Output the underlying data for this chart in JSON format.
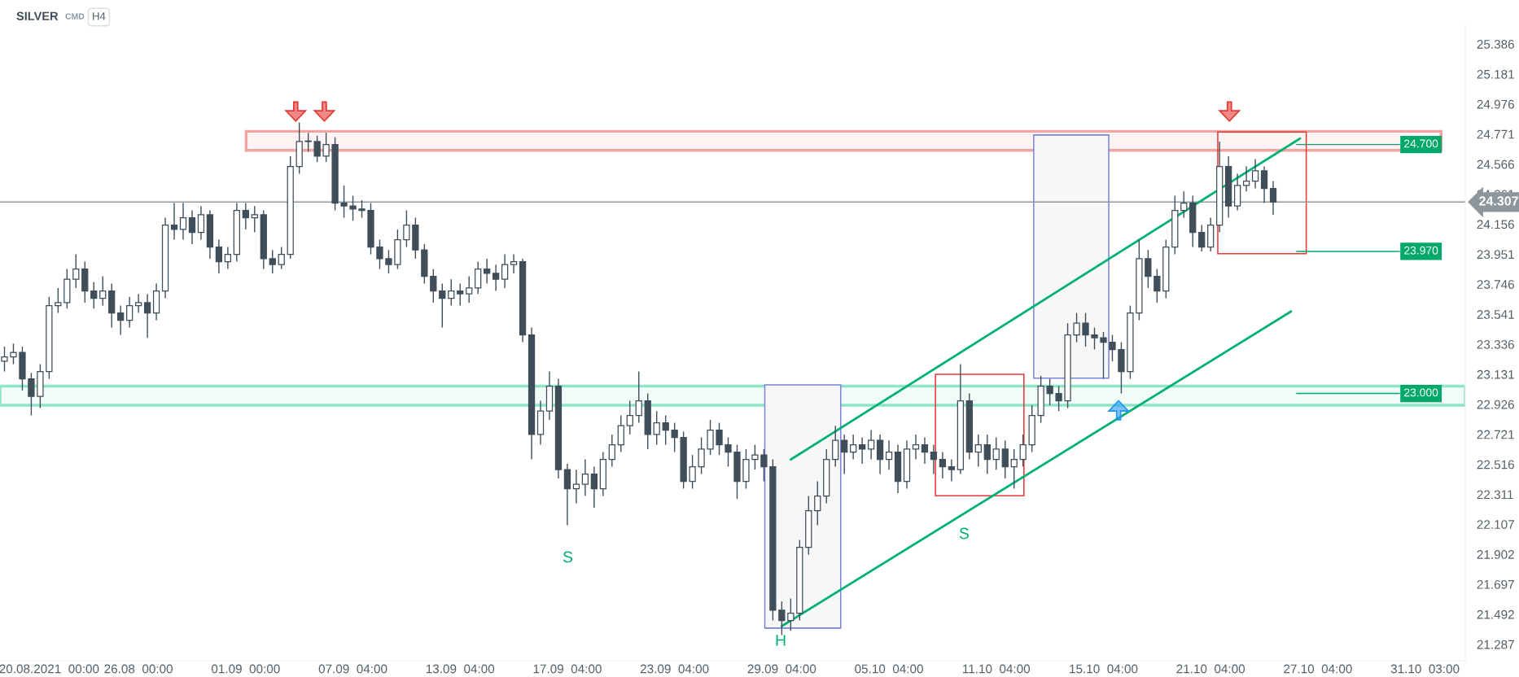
{
  "chart_data": {
    "type": "candlestick",
    "title": "SILVER",
    "subtitle": "CMD",
    "annotations": [
      "H4",
      "S",
      "H",
      "S"
    ],
    "categories": [
      null,
      null,
      null,
      null,
      null,
      "20.08.2021  00:00",
      null,
      null,
      null,
      null,
      null,
      null,
      null,
      null,
      null,
      "26.08  00:00",
      null,
      null,
      null,
      null,
      null,
      null,
      null,
      null,
      null,
      null,
      null,
      "01.09  00:00",
      null,
      null,
      null,
      null,
      null,
      null,
      null,
      null,
      null,
      null,
      null,
      "07.09  04:00",
      null,
      null,
      null,
      null,
      null,
      null,
      null,
      null,
      null,
      null,
      null,
      "13.09  04:00",
      null,
      null,
      null,
      null,
      null,
      null,
      null,
      null,
      null,
      null,
      null,
      "17.09  04:00",
      null,
      null,
      null,
      null,
      null,
      null,
      null,
      null,
      null,
      null,
      null,
      "23.09  04:00",
      null,
      null,
      null,
      null,
      null,
      null,
      null,
      null,
      null,
      null,
      null,
      "29.09  04:00",
      null,
      null,
      null,
      null,
      null,
      null,
      null,
      null,
      null,
      null,
      null,
      "05.10  04:00",
      null,
      null,
      null,
      null,
      null,
      null,
      null,
      null,
      null,
      null,
      null,
      "11.10  04:00",
      null,
      null,
      null,
      null,
      null,
      null,
      null,
      null,
      null,
      null,
      null,
      "15.10  04:00",
      null,
      null,
      null,
      null,
      null,
      null,
      null,
      null,
      null,
      null,
      null,
      "21.10  04:00",
      null,
      null,
      null,
      null,
      null,
      null,
      null,
      null,
      null,
      null,
      null,
      "27.10  04:00",
      null,
      null,
      null,
      null,
      null,
      null,
      null,
      null,
      null,
      null,
      null,
      "31.10  03:00",
      null,
      null,
      null,
      null
    ],
    "ohlc": [
      [
        23.22,
        23.32,
        23.15,
        23.25
      ],
      [
        23.25,
        23.34,
        23.2,
        23.28
      ],
      [
        23.28,
        23.32,
        23.02,
        23.1
      ],
      [
        23.1,
        23.14,
        22.85,
        22.98
      ],
      [
        22.98,
        23.2,
        22.9,
        23.15
      ],
      [
        23.15,
        23.66,
        23.1,
        23.6
      ],
      [
        23.6,
        23.72,
        23.55,
        23.62
      ],
      [
        23.62,
        23.85,
        23.58,
        23.78
      ],
      [
        23.78,
        23.95,
        23.72,
        23.85
      ],
      [
        23.85,
        23.9,
        23.62,
        23.7
      ],
      [
        23.7,
        23.76,
        23.58,
        23.65
      ],
      [
        23.65,
        23.8,
        23.6,
        23.7
      ],
      [
        23.7,
        23.75,
        23.45,
        23.55
      ],
      [
        23.55,
        23.6,
        23.4,
        23.5
      ],
      [
        23.5,
        23.66,
        23.45,
        23.6
      ],
      [
        23.6,
        23.68,
        23.55,
        23.62
      ],
      [
        23.62,
        23.68,
        23.38,
        23.55
      ],
      [
        23.55,
        23.75,
        23.5,
        23.7
      ],
      [
        23.7,
        24.2,
        23.65,
        24.15
      ],
      [
        24.15,
        24.3,
        24.05,
        24.12
      ],
      [
        24.12,
        24.3,
        24.05,
        24.2
      ],
      [
        24.2,
        24.25,
        24.02,
        24.1
      ],
      [
        24.1,
        24.28,
        24.05,
        24.22
      ],
      [
        24.22,
        24.25,
        23.92,
        24.0
      ],
      [
        24.0,
        24.05,
        23.82,
        23.9
      ],
      [
        23.9,
        24.0,
        23.85,
        23.95
      ],
      [
        23.95,
        24.3,
        23.9,
        24.25
      ],
      [
        24.25,
        24.3,
        24.12,
        24.2
      ],
      [
        24.2,
        24.28,
        24.1,
        24.22
      ],
      [
        24.22,
        24.25,
        23.85,
        23.92
      ],
      [
        23.92,
        23.98,
        23.82,
        23.88
      ],
      [
        23.88,
        24.0,
        23.85,
        23.95
      ],
      [
        23.95,
        24.62,
        23.92,
        24.55
      ],
      [
        24.55,
        24.85,
        24.5,
        24.72
      ],
      [
        24.72,
        24.78,
        24.65,
        24.72
      ],
      [
        24.72,
        24.76,
        24.58,
        24.62
      ],
      [
        24.62,
        24.78,
        24.58,
        24.7
      ],
      [
        24.7,
        24.75,
        24.25,
        24.3
      ],
      [
        24.3,
        24.42,
        24.2,
        24.28
      ],
      [
        24.28,
        24.35,
        24.18,
        24.26
      ],
      [
        24.26,
        24.32,
        24.2,
        24.25
      ],
      [
        24.25,
        24.3,
        23.95,
        24.0
      ],
      [
        24.0,
        24.05,
        23.85,
        23.92
      ],
      [
        23.92,
        23.98,
        23.82,
        23.88
      ],
      [
        23.88,
        24.12,
        23.85,
        24.05
      ],
      [
        24.05,
        24.25,
        24.0,
        24.15
      ],
      [
        24.15,
        24.2,
        23.92,
        23.98
      ],
      [
        23.98,
        24.02,
        23.75,
        23.8
      ],
      [
        23.8,
        23.85,
        23.62,
        23.7
      ],
      [
        23.7,
        23.75,
        23.45,
        23.65
      ],
      [
        23.65,
        23.78,
        23.6,
        23.7
      ],
      [
        23.7,
        23.75,
        23.6,
        23.68
      ],
      [
        23.68,
        23.8,
        23.62,
        23.72
      ],
      [
        23.72,
        23.9,
        23.68,
        23.85
      ],
      [
        23.85,
        23.92,
        23.75,
        23.82
      ],
      [
        23.82,
        23.88,
        23.7,
        23.78
      ],
      [
        23.78,
        23.95,
        23.72,
        23.88
      ],
      [
        23.88,
        23.95,
        23.82,
        23.9
      ],
      [
        23.9,
        23.92,
        23.35,
        23.4
      ],
      [
        23.4,
        23.45,
        22.55,
        22.72
      ],
      [
        22.72,
        22.95,
        22.65,
        22.88
      ],
      [
        22.88,
        23.15,
        22.82,
        23.05
      ],
      [
        23.05,
        23.1,
        22.42,
        22.48
      ],
      [
        22.48,
        22.52,
        22.1,
        22.35
      ],
      [
        22.35,
        22.48,
        22.25,
        22.38
      ],
      [
        22.38,
        22.55,
        22.3,
        22.45
      ],
      [
        22.45,
        22.5,
        22.22,
        22.35
      ],
      [
        22.35,
        22.6,
        22.3,
        22.55
      ],
      [
        22.55,
        22.72,
        22.5,
        22.65
      ],
      [
        22.65,
        22.85,
        22.6,
        22.78
      ],
      [
        22.78,
        22.95,
        22.72,
        22.85
      ],
      [
        22.85,
        23.15,
        22.8,
        22.95
      ],
      [
        22.95,
        23.0,
        22.62,
        22.72
      ],
      [
        22.72,
        22.88,
        22.65,
        22.8
      ],
      [
        22.8,
        22.85,
        22.65,
        22.75
      ],
      [
        22.75,
        22.8,
        22.6,
        22.7
      ],
      [
        22.7,
        22.74,
        22.35,
        22.4
      ],
      [
        22.4,
        22.58,
        22.35,
        22.5
      ],
      [
        22.5,
        22.7,
        22.45,
        22.62
      ],
      [
        22.62,
        22.82,
        22.58,
        22.75
      ],
      [
        22.75,
        22.8,
        22.58,
        22.65
      ],
      [
        22.65,
        22.7,
        22.5,
        22.6
      ],
      [
        22.6,
        22.65,
        22.28,
        22.4
      ],
      [
        22.4,
        22.62,
        22.35,
        22.55
      ],
      [
        22.55,
        22.65,
        22.48,
        22.58
      ],
      [
        22.58,
        22.62,
        22.4,
        22.5
      ],
      [
        22.5,
        22.55,
        21.45,
        21.52
      ],
      [
        21.52,
        21.58,
        21.35,
        21.45
      ],
      [
        21.45,
        21.6,
        21.38,
        21.5
      ],
      [
        21.5,
        22.0,
        21.45,
        21.95
      ],
      [
        21.95,
        22.3,
        21.9,
        22.2
      ],
      [
        22.2,
        22.4,
        22.1,
        22.3
      ],
      [
        22.3,
        22.62,
        22.25,
        22.55
      ],
      [
        22.55,
        22.78,
        22.5,
        22.68
      ],
      [
        22.68,
        22.72,
        22.45,
        22.6
      ],
      [
        22.6,
        22.72,
        22.55,
        22.65
      ],
      [
        22.65,
        22.7,
        22.52,
        22.62
      ],
      [
        22.62,
        22.75,
        22.55,
        22.68
      ],
      [
        22.68,
        22.72,
        22.45,
        22.55
      ],
      [
        22.55,
        22.68,
        22.48,
        22.6
      ],
      [
        22.6,
        22.65,
        22.32,
        22.4
      ],
      [
        22.4,
        22.68,
        22.35,
        22.62
      ],
      [
        22.62,
        22.72,
        22.55,
        22.65
      ],
      [
        22.65,
        22.7,
        22.52,
        22.6
      ],
      [
        22.6,
        22.65,
        22.45,
        22.55
      ],
      [
        22.55,
        22.6,
        22.42,
        22.5
      ],
      [
        22.5,
        22.55,
        22.4,
        22.48
      ],
      [
        22.48,
        23.2,
        22.45,
        22.95
      ],
      [
        22.95,
        23.0,
        22.55,
        22.6
      ],
      [
        22.6,
        22.72,
        22.5,
        22.65
      ],
      [
        22.65,
        22.72,
        22.45,
        22.55
      ],
      [
        22.55,
        22.7,
        22.48,
        22.62
      ],
      [
        22.62,
        22.68,
        22.42,
        22.5
      ],
      [
        22.5,
        22.62,
        22.35,
        22.55
      ],
      [
        22.55,
        22.72,
        22.5,
        22.65
      ],
      [
        22.65,
        22.92,
        22.6,
        22.85
      ],
      [
        22.85,
        23.12,
        22.8,
        23.05
      ],
      [
        23.05,
        23.1,
        22.92,
        23.0
      ],
      [
        23.0,
        23.05,
        22.88,
        22.95
      ],
      [
        22.95,
        23.48,
        22.9,
        23.4
      ],
      [
        23.4,
        23.55,
        23.35,
        23.48
      ],
      [
        23.48,
        23.55,
        23.32,
        23.4
      ],
      [
        23.4,
        23.45,
        23.3,
        23.38
      ],
      [
        23.38,
        23.42,
        23.1,
        23.35
      ],
      [
        23.35,
        23.4,
        23.22,
        23.3
      ],
      [
        23.3,
        23.35,
        23.0,
        23.15
      ],
      [
        23.15,
        23.6,
        23.1,
        23.55
      ],
      [
        23.55,
        24.05,
        23.5,
        23.92
      ],
      [
        23.92,
        23.98,
        23.72,
        23.8
      ],
      [
        23.8,
        23.85,
        23.62,
        23.7
      ],
      [
        23.7,
        24.05,
        23.65,
        24.0
      ],
      [
        24.0,
        24.35,
        23.95,
        24.25
      ],
      [
        24.25,
        24.38,
        24.2,
        24.3
      ],
      [
        24.3,
        24.35,
        24.0,
        24.1
      ],
      [
        24.1,
        24.15,
        23.97,
        24.0
      ],
      [
        24.0,
        24.2,
        23.97,
        24.15
      ],
      [
        24.15,
        24.72,
        24.1,
        24.55
      ],
      [
        24.55,
        24.62,
        24.2,
        24.28
      ],
      [
        24.28,
        24.5,
        24.25,
        24.42
      ],
      [
        24.42,
        24.55,
        24.38,
        24.45
      ],
      [
        24.45,
        24.6,
        24.4,
        24.52
      ],
      [
        24.52,
        24.55,
        24.3,
        24.4
      ],
      [
        24.4,
        24.45,
        24.22,
        24.307
      ],
      null,
      null,
      null,
      null,
      null,
      null,
      null,
      null,
      null,
      null,
      null,
      null,
      null,
      null,
      null,
      null,
      null,
      null,
      null,
      null,
      null
    ],
    "series": [
      {
        "type": "line",
        "color": "#00b074",
        "values": [
          null,
          null,
          null,
          null,
          null,
          null,
          null,
          null,
          null,
          null,
          null,
          null,
          null,
          null,
          null,
          null,
          null,
          null,
          null,
          null,
          null,
          null,
          null,
          null,
          null,
          null,
          null,
          null,
          null,
          null,
          null,
          null,
          null,
          null,
          null,
          null,
          null,
          null,
          null,
          null,
          null,
          null,
          null,
          null,
          null,
          null,
          null,
          null,
          null,
          null,
          null,
          null,
          null,
          null,
          null,
          null,
          null,
          null,
          null,
          null,
          null,
          null,
          null,
          null,
          null,
          null,
          null,
          null,
          null,
          null,
          null,
          null,
          null,
          null,
          null,
          null,
          null,
          null,
          null,
          null,
          null,
          null,
          null,
          null,
          null,
          null,
          null,
          null,
          22.549,
          null,
          null,
          null,
          null,
          null,
          null,
          null,
          null,
          null,
          null,
          null,
          null,
          null,
          null,
          null,
          null,
          null,
          null,
          null,
          null,
          null,
          null,
          null,
          null,
          null,
          null,
          null,
          null,
          null,
          null,
          null,
          null,
          null,
          null,
          null,
          null,
          null,
          null,
          null,
          null,
          null,
          null,
          null,
          null,
          null,
          null,
          null,
          null,
          null,
          null,
          null,
          null,
          null,
          null,
          null,
          null,
          24.741,
          null,
          null,
          null,
          null,
          null,
          null,
          null,
          null,
          null,
          null,
          null,
          null,
          null,
          null,
          null,
          null,
          null,
          null
        ]
      },
      {
        "type": "line",
        "color": "#00b074",
        "values": [
          null,
          null,
          null,
          null,
          null,
          null,
          null,
          null,
          null,
          null,
          null,
          null,
          null,
          null,
          null,
          null,
          null,
          null,
          null,
          null,
          null,
          null,
          null,
          null,
          null,
          null,
          null,
          null,
          null,
          null,
          null,
          null,
          null,
          null,
          null,
          null,
          null,
          null,
          null,
          null,
          null,
          null,
          null,
          null,
          null,
          null,
          null,
          null,
          null,
          null,
          null,
          null,
          null,
          null,
          null,
          null,
          null,
          null,
          null,
          null,
          null,
          null,
          null,
          null,
          null,
          null,
          null,
          null,
          null,
          null,
          null,
          null,
          null,
          null,
          null,
          null,
          null,
          null,
          null,
          null,
          null,
          null,
          null,
          null,
          null,
          null,
          null,
          21.411,
          null,
          null,
          null,
          null,
          null,
          null,
          null,
          null,
          null,
          null,
          null,
          null,
          null,
          null,
          null,
          null,
          null,
          null,
          null,
          null,
          null,
          null,
          null,
          null,
          null,
          null,
          null,
          null,
          null,
          null,
          null,
          null,
          null,
          null,
          null,
          null,
          null,
          null,
          null,
          null,
          null,
          null,
          null,
          null,
          null,
          null,
          null,
          null,
          null,
          null,
          null,
          null,
          null,
          null,
          null,
          null,
          23.56,
          null,
          null,
          null,
          null,
          null,
          null,
          null,
          null,
          null,
          null,
          null,
          null,
          null,
          null,
          null,
          null,
          null,
          null,
          null
        ]
      }
    ],
    "ylim": [
      21.175,
      25.52
    ],
    "yticks": [
      21.287,
      21.492,
      21.697,
      21.902,
      22.107,
      22.311,
      22.516,
      22.721,
      22.926,
      23.131,
      23.336,
      23.541,
      23.746,
      23.951,
      24.156,
      24.361,
      24.566,
      24.771,
      24.976,
      25.181,
      25.386
    ],
    "ref_lines": [
      {
        "axis": "y",
        "value": 24.307,
        "label": "24.307",
        "color": "#8c969c"
      },
      {
        "axis": "y",
        "value": 24.7,
        "label": "24.700",
        "color": "#00a86b"
      },
      {
        "axis": "y",
        "value": 23.97,
        "label": "23.970",
        "color": "#00a86b"
      },
      {
        "axis": "y",
        "value": 23.0,
        "label": "23.000",
        "color": "#00a86b"
      }
    ],
    "bands": [
      {
        "axis": "y",
        "from": 24.66,
        "to": 24.79,
        "color": "#f4a3a3"
      },
      {
        "axis": "y",
        "from": 22.92,
        "to": 23.05,
        "color": "#8fe3c6"
      }
    ]
  }
}
